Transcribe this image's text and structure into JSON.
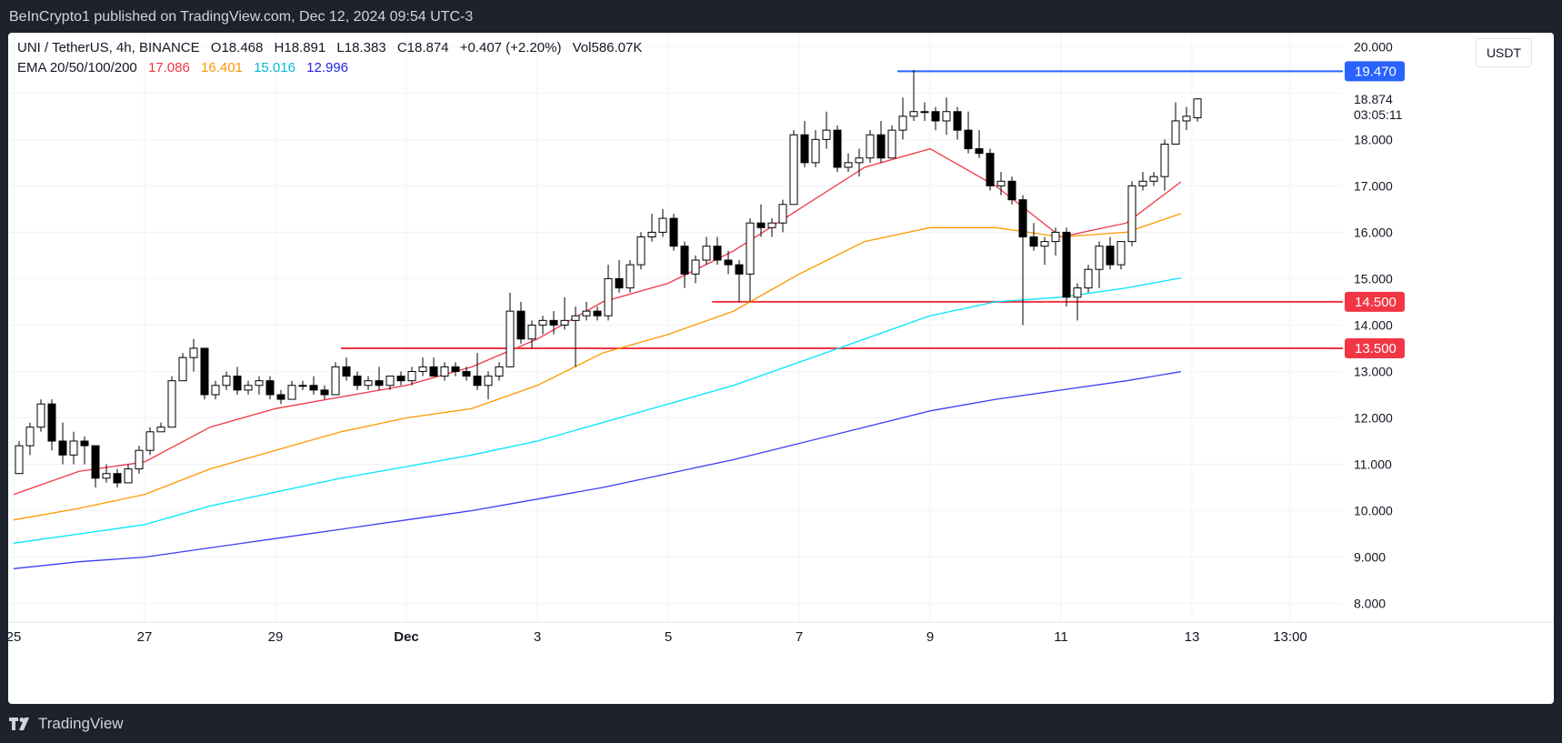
{
  "header": {
    "publisher_text": "BeInCrypto1 published on TradingView.com, Dec 12, 2024 09:54 UTC-3"
  },
  "legend": {
    "symbol": "UNI / TetherUS, 4h, BINANCE",
    "open": "O18.468",
    "high": "H18.891",
    "low": "L18.383",
    "close": "C18.874",
    "change": "+0.407 (+2.20%)",
    "volume": "Vol586.07K",
    "ema_label": "EMA 20/50/100/200",
    "ema20": "17.086",
    "ema50": "16.401",
    "ema100": "15.016",
    "ema200": "12.996"
  },
  "currency_button": "USDT",
  "footer": {
    "brand": "TradingView"
  },
  "colors": {
    "up_body": "#ffffff",
    "down_body": "#000000",
    "candle_outline": "#000000",
    "ema20": "#f23645",
    "ema50": "#ff9800",
    "ema100": "#00e5ff",
    "ema200": "#3d3df5",
    "resistance": "#2962ff",
    "support": "#f23645"
  },
  "chart_data": {
    "type": "candlestick",
    "title": "UNI / TetherUS, 4h, BINANCE",
    "ylim": [
      7.6,
      20.3
    ],
    "y_ticks": [
      {
        "value": 8,
        "label": "8.000"
      },
      {
        "value": 9,
        "label": "9.000"
      },
      {
        "value": 10,
        "label": "10.000"
      },
      {
        "value": 11,
        "label": "11.000"
      },
      {
        "value": 12,
        "label": "12.000"
      },
      {
        "value": 13,
        "label": "13.000"
      },
      {
        "value": 14,
        "label": "14.000"
      },
      {
        "value": 15,
        "label": "15.000"
      },
      {
        "value": 16,
        "label": "16.000"
      },
      {
        "value": 17,
        "label": "17.000"
      },
      {
        "value": 18,
        "label": "18.000"
      },
      {
        "value": 19,
        "label": "19.000"
      },
      {
        "value": 20,
        "label": "20.000"
      }
    ],
    "x_ticks": [
      {
        "day": 0,
        "label": "25"
      },
      {
        "day": 2,
        "label": "27"
      },
      {
        "day": 4,
        "label": "29"
      },
      {
        "day": 6,
        "label": "Dec"
      },
      {
        "day": 8,
        "label": "3"
      },
      {
        "day": 10,
        "label": "5"
      },
      {
        "day": 12,
        "label": "7"
      },
      {
        "day": 14,
        "label": "9"
      },
      {
        "day": 16,
        "label": "11"
      },
      {
        "day": 18,
        "label": "13"
      },
      {
        "day": 19.5,
        "label": "13:00"
      }
    ],
    "x_units": "days since Nov 25 00:00 (each candle = 4h)",
    "candles": [
      {
        "o": 10.8,
        "h": 11.5,
        "l": 10.8,
        "c": 11.4
      },
      {
        "o": 11.4,
        "h": 11.9,
        "l": 11.2,
        "c": 11.8
      },
      {
        "o": 11.8,
        "h": 12.4,
        "l": 11.7,
        "c": 12.3
      },
      {
        "o": 12.3,
        "h": 12.4,
        "l": 11.3,
        "c": 11.5
      },
      {
        "o": 11.5,
        "h": 11.9,
        "l": 11.0,
        "c": 11.2
      },
      {
        "o": 11.2,
        "h": 11.7,
        "l": 11.0,
        "c": 11.5
      },
      {
        "o": 11.5,
        "h": 11.6,
        "l": 11.0,
        "c": 11.4
      },
      {
        "o": 11.4,
        "h": 11.4,
        "l": 10.5,
        "c": 10.7
      },
      {
        "o": 10.7,
        "h": 11.0,
        "l": 10.6,
        "c": 10.8
      },
      {
        "o": 10.8,
        "h": 10.9,
        "l": 10.5,
        "c": 10.6
      },
      {
        "o": 10.6,
        "h": 11.0,
        "l": 10.6,
        "c": 10.9
      },
      {
        "o": 10.9,
        "h": 11.4,
        "l": 10.8,
        "c": 11.3
      },
      {
        "o": 11.3,
        "h": 11.8,
        "l": 11.2,
        "c": 11.7
      },
      {
        "o": 11.7,
        "h": 11.9,
        "l": 11.7,
        "c": 11.8
      },
      {
        "o": 11.8,
        "h": 12.9,
        "l": 11.8,
        "c": 12.8
      },
      {
        "o": 12.8,
        "h": 13.4,
        "l": 12.8,
        "c": 13.3
      },
      {
        "o": 13.3,
        "h": 13.7,
        "l": 13.0,
        "c": 13.5
      },
      {
        "o": 13.5,
        "h": 13.5,
        "l": 12.4,
        "c": 12.5
      },
      {
        "o": 12.5,
        "h": 12.8,
        "l": 12.4,
        "c": 12.7
      },
      {
        "o": 12.7,
        "h": 13.0,
        "l": 12.6,
        "c": 12.9
      },
      {
        "o": 12.9,
        "h": 13.1,
        "l": 12.5,
        "c": 12.6
      },
      {
        "o": 12.6,
        "h": 12.8,
        "l": 12.5,
        "c": 12.7
      },
      {
        "o": 12.7,
        "h": 12.9,
        "l": 12.5,
        "c": 12.8
      },
      {
        "o": 12.8,
        "h": 12.9,
        "l": 12.4,
        "c": 12.5
      },
      {
        "o": 12.5,
        "h": 12.6,
        "l": 12.3,
        "c": 12.4
      },
      {
        "o": 12.4,
        "h": 12.8,
        "l": 12.4,
        "c": 12.7
      },
      {
        "o": 12.7,
        "h": 12.8,
        "l": 12.6,
        "c": 12.7
      },
      {
        "o": 12.7,
        "h": 12.9,
        "l": 12.5,
        "c": 12.6
      },
      {
        "o": 12.6,
        "h": 12.7,
        "l": 12.4,
        "c": 12.5
      },
      {
        "o": 12.5,
        "h": 13.2,
        "l": 12.5,
        "c": 13.1
      },
      {
        "o": 13.1,
        "h": 13.3,
        "l": 12.8,
        "c": 12.9
      },
      {
        "o": 12.9,
        "h": 13.0,
        "l": 12.6,
        "c": 12.7
      },
      {
        "o": 12.7,
        "h": 12.9,
        "l": 12.6,
        "c": 12.8
      },
      {
        "o": 12.8,
        "h": 13.1,
        "l": 12.6,
        "c": 12.7
      },
      {
        "o": 12.7,
        "h": 12.9,
        "l": 12.6,
        "c": 12.9
      },
      {
        "o": 12.9,
        "h": 13.0,
        "l": 12.7,
        "c": 12.8
      },
      {
        "o": 12.8,
        "h": 13.1,
        "l": 12.7,
        "c": 13.0
      },
      {
        "o": 13.0,
        "h": 13.3,
        "l": 12.9,
        "c": 13.1
      },
      {
        "o": 13.1,
        "h": 13.3,
        "l": 12.9,
        "c": 12.9
      },
      {
        "o": 12.9,
        "h": 13.2,
        "l": 12.8,
        "c": 13.1
      },
      {
        "o": 13.1,
        "h": 13.2,
        "l": 12.9,
        "c": 13.0
      },
      {
        "o": 13.0,
        "h": 13.1,
        "l": 12.8,
        "c": 12.9
      },
      {
        "o": 12.9,
        "h": 13.4,
        "l": 12.6,
        "c": 12.7
      },
      {
        "o": 12.7,
        "h": 13.0,
        "l": 12.4,
        "c": 12.9
      },
      {
        "o": 12.9,
        "h": 13.2,
        "l": 12.8,
        "c": 13.1
      },
      {
        "o": 13.1,
        "h": 14.7,
        "l": 13.1,
        "c": 14.3
      },
      {
        "o": 14.3,
        "h": 14.5,
        "l": 13.6,
        "c": 13.7
      },
      {
        "o": 13.7,
        "h": 14.1,
        "l": 13.5,
        "c": 14.0
      },
      {
        "o": 14.0,
        "h": 14.2,
        "l": 13.8,
        "c": 14.1
      },
      {
        "o": 14.1,
        "h": 14.3,
        "l": 13.8,
        "c": 14.0
      },
      {
        "o": 14.0,
        "h": 14.6,
        "l": 13.9,
        "c": 14.1
      },
      {
        "o": 14.1,
        "h": 14.4,
        "l": 13.1,
        "c": 14.2
      },
      {
        "o": 14.2,
        "h": 14.5,
        "l": 14.1,
        "c": 14.3
      },
      {
        "o": 14.3,
        "h": 14.4,
        "l": 14.1,
        "c": 14.2
      },
      {
        "o": 14.2,
        "h": 15.3,
        "l": 14.1,
        "c": 15.0
      },
      {
        "o": 15.0,
        "h": 15.4,
        "l": 14.7,
        "c": 14.8
      },
      {
        "o": 14.8,
        "h": 15.4,
        "l": 14.7,
        "c": 15.3
      },
      {
        "o": 15.3,
        "h": 16.0,
        "l": 15.2,
        "c": 15.9
      },
      {
        "o": 15.9,
        "h": 16.4,
        "l": 15.8,
        "c": 16.0
      },
      {
        "o": 16.0,
        "h": 16.5,
        "l": 15.9,
        "c": 16.3
      },
      {
        "o": 16.3,
        "h": 16.4,
        "l": 15.6,
        "c": 15.7
      },
      {
        "o": 15.7,
        "h": 15.8,
        "l": 14.8,
        "c": 15.1
      },
      {
        "o": 15.1,
        "h": 15.5,
        "l": 14.9,
        "c": 15.4
      },
      {
        "o": 15.4,
        "h": 15.9,
        "l": 15.3,
        "c": 15.7
      },
      {
        "o": 15.7,
        "h": 15.9,
        "l": 15.3,
        "c": 15.4
      },
      {
        "o": 15.4,
        "h": 15.6,
        "l": 15.1,
        "c": 15.3
      },
      {
        "o": 15.3,
        "h": 15.4,
        "l": 14.5,
        "c": 15.1
      },
      {
        "o": 15.1,
        "h": 16.3,
        "l": 14.5,
        "c": 16.2
      },
      {
        "o": 16.2,
        "h": 16.6,
        "l": 15.9,
        "c": 16.1
      },
      {
        "o": 16.1,
        "h": 16.3,
        "l": 15.9,
        "c": 16.2
      },
      {
        "o": 16.2,
        "h": 16.7,
        "l": 16.0,
        "c": 16.6
      },
      {
        "o": 16.6,
        "h": 18.2,
        "l": 16.6,
        "c": 18.1
      },
      {
        "o": 18.1,
        "h": 18.4,
        "l": 17.4,
        "c": 17.5
      },
      {
        "o": 17.5,
        "h": 18.2,
        "l": 17.4,
        "c": 18.0
      },
      {
        "o": 18.0,
        "h": 18.6,
        "l": 17.8,
        "c": 18.2
      },
      {
        "o": 18.2,
        "h": 18.3,
        "l": 17.3,
        "c": 17.4
      },
      {
        "o": 17.4,
        "h": 17.7,
        "l": 17.3,
        "c": 17.5
      },
      {
        "o": 17.5,
        "h": 17.8,
        "l": 17.2,
        "c": 17.6
      },
      {
        "o": 17.6,
        "h": 18.2,
        "l": 17.5,
        "c": 18.1
      },
      {
        "o": 18.1,
        "h": 18.4,
        "l": 17.5,
        "c": 17.6
      },
      {
        "o": 17.6,
        "h": 18.3,
        "l": 17.6,
        "c": 18.2
      },
      {
        "o": 18.2,
        "h": 18.9,
        "l": 18.0,
        "c": 18.5
      },
      {
        "o": 18.5,
        "h": 19.5,
        "l": 18.4,
        "c": 18.6
      },
      {
        "o": 18.6,
        "h": 18.8,
        "l": 18.4,
        "c": 18.6
      },
      {
        "o": 18.6,
        "h": 18.7,
        "l": 18.2,
        "c": 18.4
      },
      {
        "o": 18.4,
        "h": 18.9,
        "l": 18.1,
        "c": 18.6
      },
      {
        "o": 18.6,
        "h": 18.7,
        "l": 18.0,
        "c": 18.2
      },
      {
        "o": 18.2,
        "h": 18.6,
        "l": 17.7,
        "c": 17.8
      },
      {
        "o": 17.8,
        "h": 18.2,
        "l": 17.6,
        "c": 17.7
      },
      {
        "o": 17.7,
        "h": 17.8,
        "l": 16.9,
        "c": 17.0
      },
      {
        "o": 17.0,
        "h": 17.3,
        "l": 16.8,
        "c": 17.1
      },
      {
        "o": 17.1,
        "h": 17.2,
        "l": 16.6,
        "c": 16.7
      },
      {
        "o": 16.7,
        "h": 16.8,
        "l": 14.0,
        "c": 15.9
      },
      {
        "o": 15.9,
        "h": 16.2,
        "l": 15.6,
        "c": 15.7
      },
      {
        "o": 15.7,
        "h": 15.9,
        "l": 15.3,
        "c": 15.8
      },
      {
        "o": 15.8,
        "h": 16.1,
        "l": 15.5,
        "c": 16.0
      },
      {
        "o": 16.0,
        "h": 16.1,
        "l": 14.4,
        "c": 14.6
      },
      {
        "o": 14.6,
        "h": 14.9,
        "l": 14.1,
        "c": 14.8
      },
      {
        "o": 14.8,
        "h": 15.3,
        "l": 14.7,
        "c": 15.2
      },
      {
        "o": 15.2,
        "h": 15.8,
        "l": 14.8,
        "c": 15.7
      },
      {
        "o": 15.7,
        "h": 15.9,
        "l": 15.2,
        "c": 15.3
      },
      {
        "o": 15.3,
        "h": 15.8,
        "l": 15.2,
        "c": 15.8
      },
      {
        "o": 15.8,
        "h": 17.1,
        "l": 15.7,
        "c": 17.0
      },
      {
        "o": 17.0,
        "h": 17.3,
        "l": 16.9,
        "c": 17.1
      },
      {
        "o": 17.1,
        "h": 17.3,
        "l": 17.0,
        "c": 17.2
      },
      {
        "o": 17.2,
        "h": 18.0,
        "l": 16.9,
        "c": 17.9
      },
      {
        "o": 17.9,
        "h": 18.8,
        "l": 17.9,
        "c": 18.4
      },
      {
        "o": 18.4,
        "h": 18.7,
        "l": 18.2,
        "c": 18.5
      },
      {
        "o": 18.468,
        "h": 18.891,
        "l": 18.383,
        "c": 18.874
      }
    ],
    "series": [
      {
        "name": "EMA 20",
        "value_last": 17.086,
        "points": [
          [
            0,
            10.35
          ],
          [
            1,
            10.85
          ],
          [
            2,
            11.05
          ],
          [
            3,
            11.8
          ],
          [
            4,
            12.2
          ],
          [
            5,
            12.45
          ],
          [
            6,
            12.7
          ],
          [
            7,
            13.1
          ],
          [
            8,
            13.7
          ],
          [
            9,
            14.5
          ],
          [
            10,
            14.9
          ],
          [
            11,
            15.6
          ],
          [
            12,
            16.5
          ],
          [
            13,
            17.4
          ],
          [
            14,
            17.8
          ],
          [
            15,
            17.0
          ],
          [
            16,
            15.9
          ],
          [
            17,
            16.2
          ],
          [
            17.83,
            17.086
          ]
        ]
      },
      {
        "name": "EMA 50",
        "value_last": 16.401,
        "points": [
          [
            0,
            9.8
          ],
          [
            1,
            10.05
          ],
          [
            2,
            10.35
          ],
          [
            3,
            10.9
          ],
          [
            4,
            11.3
          ],
          [
            5,
            11.7
          ],
          [
            6,
            12.0
          ],
          [
            7,
            12.2
          ],
          [
            8,
            12.7
          ],
          [
            9,
            13.4
          ],
          [
            10,
            13.8
          ],
          [
            11,
            14.3
          ],
          [
            12,
            15.1
          ],
          [
            13,
            15.8
          ],
          [
            14,
            16.1
          ],
          [
            15,
            16.1
          ],
          [
            16,
            15.9
          ],
          [
            17,
            16.0
          ],
          [
            17.83,
            16.401
          ]
        ]
      },
      {
        "name": "EMA 100",
        "value_last": 15.016,
        "points": [
          [
            0,
            9.3
          ],
          [
            1,
            9.5
          ],
          [
            2,
            9.7
          ],
          [
            3,
            10.1
          ],
          [
            4,
            10.4
          ],
          [
            5,
            10.7
          ],
          [
            6,
            10.95
          ],
          [
            7,
            11.2
          ],
          [
            8,
            11.5
          ],
          [
            9,
            11.9
          ],
          [
            10,
            12.3
          ],
          [
            11,
            12.7
          ],
          [
            12,
            13.2
          ],
          [
            13,
            13.7
          ],
          [
            14,
            14.2
          ],
          [
            15,
            14.5
          ],
          [
            16,
            14.6
          ],
          [
            17,
            14.8
          ],
          [
            17.83,
            15.016
          ]
        ]
      },
      {
        "name": "EMA 200",
        "value_last": 12.996,
        "points": [
          [
            0,
            8.75
          ],
          [
            1,
            8.9
          ],
          [
            2,
            9.0
          ],
          [
            3,
            9.2
          ],
          [
            4,
            9.4
          ],
          [
            5,
            9.6
          ],
          [
            6,
            9.8
          ],
          [
            7,
            10.0
          ],
          [
            8,
            10.25
          ],
          [
            9,
            10.5
          ],
          [
            10,
            10.8
          ],
          [
            11,
            11.1
          ],
          [
            12,
            11.45
          ],
          [
            13,
            11.8
          ],
          [
            14,
            12.15
          ],
          [
            15,
            12.4
          ],
          [
            16,
            12.6
          ],
          [
            17,
            12.8
          ],
          [
            17.83,
            12.996
          ]
        ]
      }
    ],
    "levels": [
      {
        "name": "resistance",
        "value": 19.47,
        "label": "19.470",
        "start_day": 13.5
      },
      {
        "name": "support-1",
        "value": 14.5,
        "label": "14.500",
        "start_day": 10.67
      },
      {
        "name": "support-2",
        "value": 13.5,
        "label": "13.500",
        "start_day": 5.0
      }
    ],
    "last_price": {
      "value": 18.874,
      "label": "18.874",
      "countdown": "03:05:11"
    },
    "annotations": {
      "date_line_label": ""
    }
  }
}
